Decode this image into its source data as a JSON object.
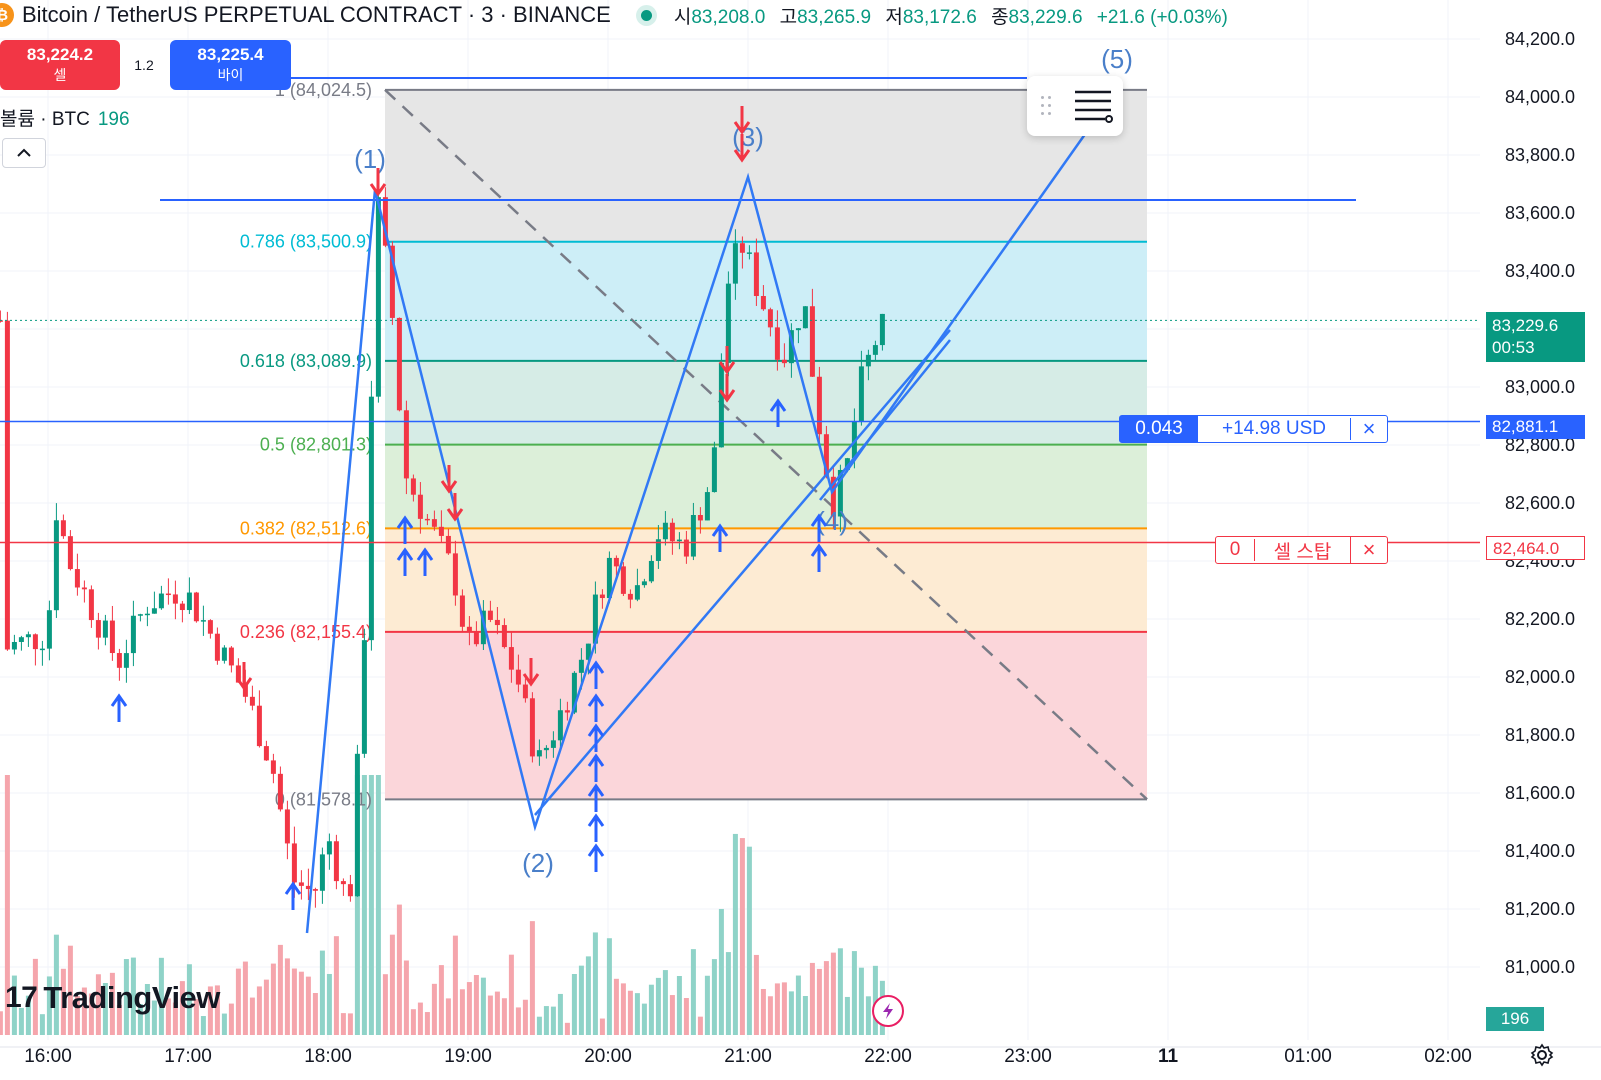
{
  "header": {
    "coin_icon": "bitcoin-icon",
    "coin_glyph": "₿",
    "title": "Bitcoin / TetherUS PERPETUAL CONTRACT · 3 · BINANCE",
    "status": "market-open-dot",
    "ohlc": [
      {
        "label": "시",
        "value": "83,208.0"
      },
      {
        "label": "고",
        "value": "83,265.9"
      },
      {
        "label": "저",
        "value": "83,172.6"
      },
      {
        "label": "종",
        "value": "83,229.6"
      }
    ],
    "change": "+21.6 (+0.03%)"
  },
  "trade": {
    "sell_price": "83,224.2",
    "sell_label": "셀",
    "spread": "1.2",
    "buy_price": "83,225.4",
    "buy_label": "바이"
  },
  "volume_legend": {
    "label": "볼륨 · BTC",
    "value": "196"
  },
  "price_axis": {
    "labels": [
      "84,200.0",
      "84,000.0",
      "83,800.0",
      "83,600.0",
      "83,400.0",
      "83,000.0",
      "82,800.0",
      "82,600.0",
      "82,400.0",
      "82,200.0",
      "82,000.0",
      "81,800.0",
      "81,600.0",
      "81,400.0",
      "81,200.0",
      "81,000.0"
    ],
    "last_price": "83,229.6",
    "countdown": "00:53",
    "volume_tag": "196"
  },
  "time_axis": {
    "labels": [
      "16:00",
      "17:00",
      "18:00",
      "19:00",
      "20:00",
      "21:00",
      "22:00",
      "23:00",
      "11",
      "01:00",
      "02:00"
    ]
  },
  "fib_levels": [
    {
      "label": "1 (84,024.5)",
      "price": 84024.5,
      "color": "#787b86"
    },
    {
      "label": "0.786 (83,500.9)",
      "price": 83500.9,
      "color": "#00bcd4"
    },
    {
      "label": "0.618 (83,089.9)",
      "price": 83089.9,
      "color": "#089981"
    },
    {
      "label": "0.5 (82,801.3)",
      "price": 82801.3,
      "color": "#4caf50"
    },
    {
      "label": "0.382 (82,512.6)",
      "price": 82512.6,
      "color": "#ff9800"
    },
    {
      "label": "0.236 (82,155.4)",
      "price": 82155.4,
      "color": "#f23645"
    },
    {
      "label": "0 (81,578.1)",
      "price": 81578.1,
      "color": "#787b86"
    }
  ],
  "waves": [
    "(1)",
    "(2)",
    "(3)",
    "(4)",
    "(5)"
  ],
  "orders": {
    "limit": {
      "qty": "0.043",
      "pnl": "+14.98 USD",
      "price": "82,881.1"
    },
    "stop": {
      "qty": "0",
      "label": "셀 스탑",
      "price": "82,464.0"
    }
  },
  "close_glyph": "×",
  "collapse_glyph": "⌃",
  "logo": {
    "mark": "17",
    "name": "TradingView"
  },
  "icons": {
    "flash": "flash-icon",
    "settings": "settings-icon",
    "menu": "lines-menu-icon"
  },
  "colors": {
    "up": "#089981",
    "down": "#f23645",
    "line": "#2962ff",
    "wave": "#3179f5",
    "sell": "#f23645",
    "buy": "#2962ff"
  }
}
